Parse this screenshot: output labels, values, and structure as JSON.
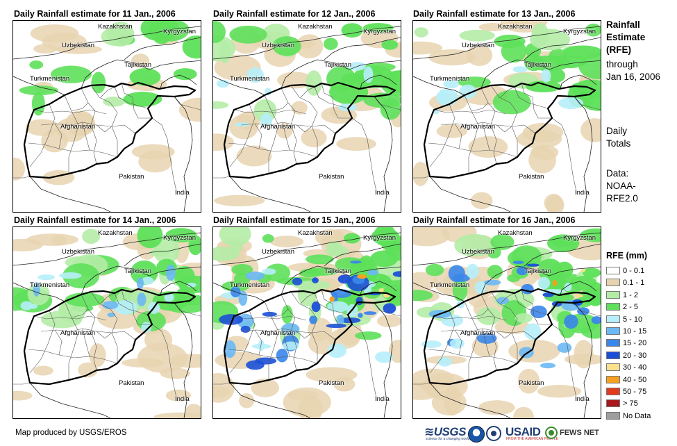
{
  "panels": [
    {
      "title": "Daily Rainfall estimate for 11 Jan., 2006",
      "intensity": 0
    },
    {
      "title": "Daily Rainfall estimate for 12 Jan., 2006",
      "intensity": 1
    },
    {
      "title": "Daily Rainfall estimate for 13 Jan., 2006",
      "intensity": 1
    },
    {
      "title": "Daily Rainfall estimate for 14 Jan., 2006",
      "intensity": 2
    },
    {
      "title": "Daily Rainfall estimate for 15 Jan., 2006",
      "intensity": 4
    },
    {
      "title": "Daily Rainfall estimate for 16 Jan., 2006",
      "intensity": 3
    }
  ],
  "country_labels": {
    "kazakhstan": "Kazakhstan",
    "kyrgyzstan": "Kyrgyzstan",
    "uzbekistan": "Uzbekistan",
    "tajikistan": "Tajikistan",
    "turkmenistan": "Turkmenistan",
    "afghanistan": "Afghanistan",
    "pakistan": "Pakistan",
    "india": "India"
  },
  "sidebar": {
    "heading_line1": "Rainfall",
    "heading_line2": "Estimate",
    "heading_line3": "(RFE)",
    "through_line1": "through",
    "through_line2": "Jan 16, 2006",
    "daily_line1": "Daily",
    "daily_line2": "Totals",
    "data_line1": "Data:",
    "data_line2": "NOAA-",
    "data_line3": "RFE2.0"
  },
  "legend": {
    "title": "RFE (mm)",
    "items": [
      {
        "label": "0 - 0.1",
        "color": "#ffffff"
      },
      {
        "label": "0.1 - 1",
        "color": "#e8d3b0"
      },
      {
        "label": "1 - 2",
        "color": "#b4eca6"
      },
      {
        "label": "2 - 5",
        "color": "#5ee05a"
      },
      {
        "label": "5 - 10",
        "color": "#b6eefa"
      },
      {
        "label": "10 - 15",
        "color": "#6cb8f4"
      },
      {
        "label": "15 - 20",
        "color": "#3a86ea"
      },
      {
        "label": "20 - 30",
        "color": "#1b4fd6"
      },
      {
        "label": "30 - 40",
        "color": "#fbe08a"
      },
      {
        "label": "40 - 50",
        "color": "#f5a020"
      },
      {
        "label": "50 - 75",
        "color": "#e23a1c"
      },
      {
        "label": "> 75",
        "color": "#a8181c"
      },
      {
        "label": "No Data",
        "color": "#9e9e9e"
      }
    ]
  },
  "footer": {
    "credit": "Map produced by USGS/EROS",
    "logo_usgs": "≋USGS",
    "logo_usgs_tagline": "science for a changing world",
    "logo_usaid": "USAID",
    "logo_usaid_tagline": "FROM THE AMERICAN PEOPLE",
    "logo_fews": "FEWS NET"
  }
}
